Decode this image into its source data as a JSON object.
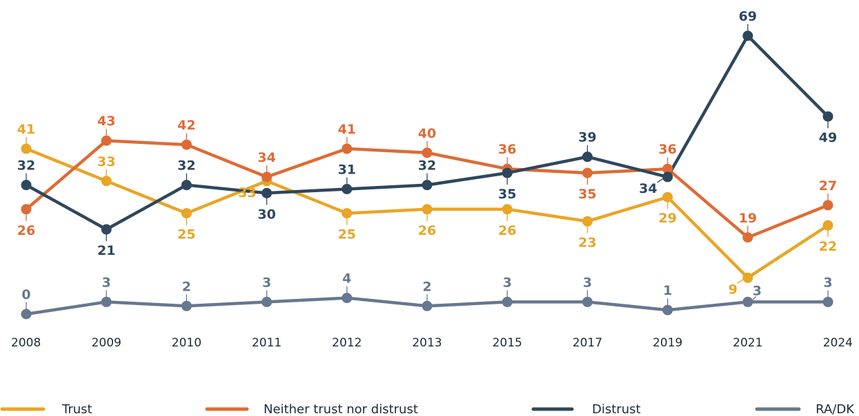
{
  "chart_data": {
    "type": "line",
    "categories": [
      "2008",
      "2009",
      "2010",
      "2011",
      "2012",
      "2013",
      "2015",
      "2017",
      "2019",
      "2021",
      "2024"
    ],
    "series": [
      {
        "name": "Trust",
        "color": "#E8A526",
        "values": [
          41,
          33,
          25,
          33,
          25,
          26,
          26,
          23,
          29,
          9,
          22
        ]
      },
      {
        "name": "Neither trust nor distrust",
        "color": "#DE6B35",
        "values": [
          26,
          43,
          42,
          34,
          41,
          40,
          36,
          35,
          36,
          19,
          27
        ]
      },
      {
        "name": "Distrust",
        "color": "#2E475D",
        "values": [
          32,
          21,
          32,
          30,
          31,
          32,
          35,
          39,
          34,
          69,
          49
        ]
      },
      {
        "name": "RA/DK",
        "color": "#667790",
        "values": [
          0,
          3,
          2,
          3,
          4,
          2,
          3,
          3,
          1,
          3,
          3
        ]
      }
    ],
    "label_positions": [
      [
        "above",
        "above",
        "below",
        "left",
        "below",
        "below",
        "below",
        "below",
        "below",
        "left",
        "below"
      ],
      [
        "below",
        "above",
        "above",
        "above",
        "above",
        "above",
        "above",
        "below",
        "above",
        "above",
        "above"
      ],
      [
        "above",
        "below",
        "above",
        "below",
        "above",
        "above",
        "below",
        "above",
        "left",
        "above",
        "below"
      ],
      [
        "above",
        "above",
        "above",
        "above",
        "above",
        "above",
        "above",
        "above",
        "above",
        "right",
        "above"
      ]
    ],
    "ylim": [
      0,
      69
    ],
    "grid": false,
    "legend_position": "bottom"
  }
}
